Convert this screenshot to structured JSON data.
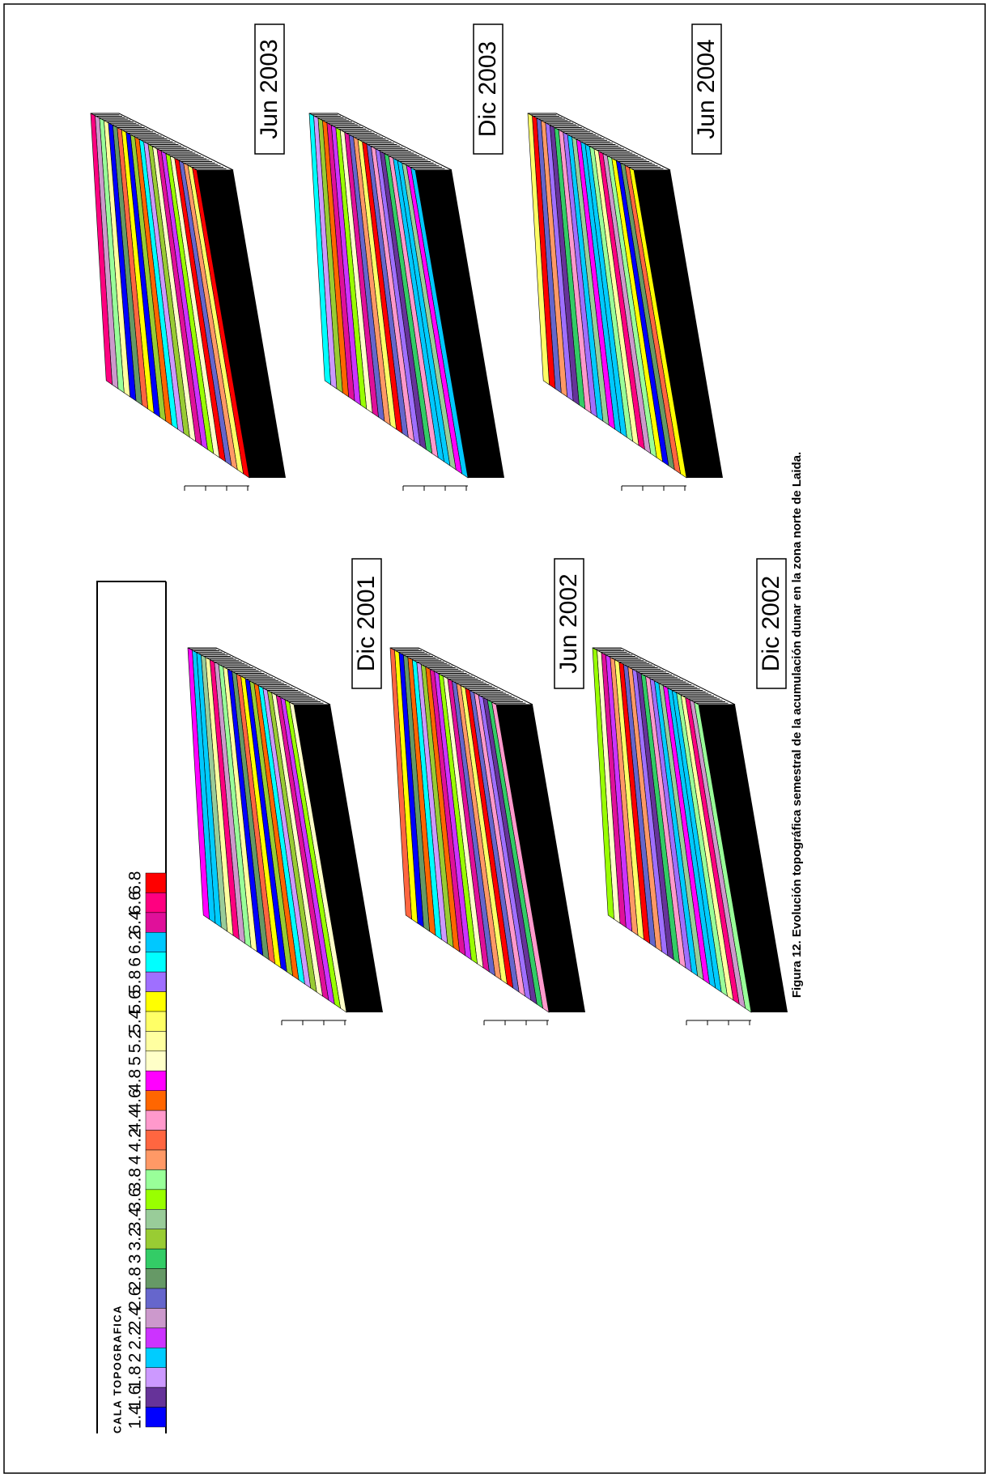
{
  "legend": {
    "title": "CALA TOPOGRAFICA",
    "entries": [
      {
        "label": "6.8",
        "color": "#ff0000"
      },
      {
        "label": "6.6",
        "color": "#ff0080"
      },
      {
        "label": "6.4",
        "color": "#e0109a"
      },
      {
        "label": "6.2",
        "color": "#00c8ff"
      },
      {
        "label": "6",
        "color": "#00ffff"
      },
      {
        "label": "5.8",
        "color": "#9f6fff"
      },
      {
        "label": "5.6",
        "color": "#ffff00"
      },
      {
        "label": "5.4",
        "color": "#ffff66"
      },
      {
        "label": "5.2",
        "color": "#ffffa0"
      },
      {
        "label": "5",
        "color": "#ffffc8"
      },
      {
        "label": "4.8",
        "color": "#ff00ff"
      },
      {
        "label": "4.6",
        "color": "#ff6600"
      },
      {
        "label": "4.4",
        "color": "#ff99cc"
      },
      {
        "label": "4.2",
        "color": "#ff6640"
      },
      {
        "label": "4",
        "color": "#ff9966"
      },
      {
        "label": "3.8",
        "color": "#99ff99"
      },
      {
        "label": "3.6",
        "color": "#99ff00"
      },
      {
        "label": "3.4",
        "color": "#99cc99"
      },
      {
        "label": "3.2",
        "color": "#99cc33"
      },
      {
        "label": "3",
        "color": "#33cc66"
      },
      {
        "label": "2.8",
        "color": "#669966"
      },
      {
        "label": "2.6",
        "color": "#6666cc"
      },
      {
        "label": "2.4",
        "color": "#cc99cc"
      },
      {
        "label": "2.2",
        "color": "#cc33ff"
      },
      {
        "label": "2",
        "color": "#00ccff"
      },
      {
        "label": "1.8",
        "color": "#cc99ff"
      },
      {
        "label": "1.6",
        "color": "#663399"
      },
      {
        "label": "1.4",
        "color": "#0000ff"
      }
    ]
  },
  "panels": [
    {
      "label": "Jun 2003"
    },
    {
      "label": "Dic 2003"
    },
    {
      "label": "Jun 2004"
    },
    {
      "label": "Dic 2001"
    },
    {
      "label": "Jun 2002"
    },
    {
      "label": "Dic 2002"
    }
  ],
  "caption": "Figura 12. Evolución topográfica semestral de la acumulación dunar en la zona norte de Laida."
}
